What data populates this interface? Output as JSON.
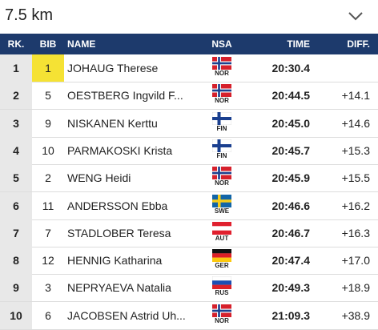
{
  "header": {
    "title": "7.5 km"
  },
  "table": {
    "columns": [
      "RK.",
      "BIB",
      "NAME",
      "NSA",
      "TIME",
      "DIFF."
    ],
    "rows": [
      [
        1,
        1,
        "JOHAUG Therese",
        "NOR",
        "20:30.4",
        null
      ],
      [
        2,
        5,
        "OESTBERG Ingvild F...",
        "NOR",
        "20:44.5",
        "+14.1"
      ],
      [
        3,
        9,
        "NISKANEN Kerttu",
        "FIN",
        "20:45.0",
        "+14.6"
      ],
      [
        4,
        10,
        "PARMAKOSKI Krista",
        "FIN",
        "20:45.7",
        "+15.3"
      ],
      [
        5,
        2,
        "WENG Heidi",
        "NOR",
        "20:45.9",
        "+15.5"
      ],
      [
        6,
        11,
        "ANDERSSON Ebba",
        "SWE",
        "20:46.6",
        "+16.2"
      ],
      [
        7,
        7,
        "STADLOBER Teresa",
        "AUT",
        "20:46.7",
        "+16.3"
      ],
      [
        8,
        12,
        "HENNIG Katharina",
        "GER",
        "20:47.4",
        "+17.0"
      ],
      [
        9,
        3,
        "NEPRYAEVA Natalia",
        "RUS",
        "20:49.3",
        "+18.9"
      ],
      [
        10,
        6,
        "JACOBSEN Astrid Uh...",
        "NOR",
        "21:09.3",
        "+38.9"
      ]
    ]
  }
}
